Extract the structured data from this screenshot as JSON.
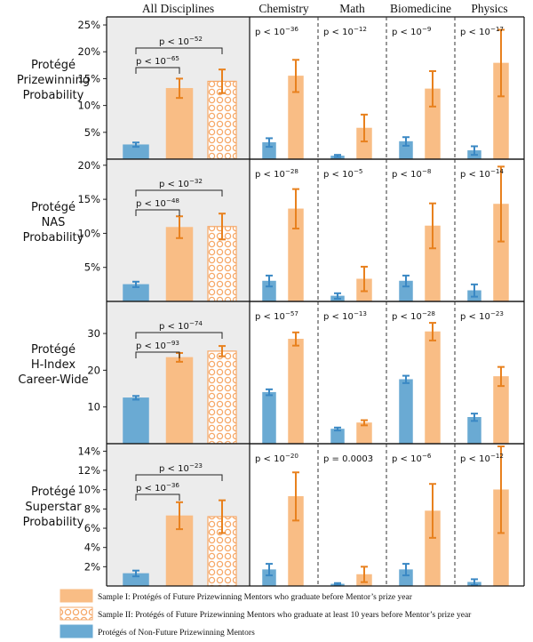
{
  "chart_data": {
    "type": "bar",
    "columns": [
      "All Disciplines",
      "Chemistry",
      "Math",
      "Biomedicine",
      "Physics"
    ],
    "colors": {
      "sample1_fill": "#f9bd85",
      "sample1_error": "#e8811e",
      "sample2_pattern": "#f6a868",
      "nonfuture_fill": "#6aaad3",
      "nonfuture_error": "#3a88c4",
      "all_panel_bg": "#ececec"
    },
    "rows": [
      {
        "label": [
          "Protégé",
          "Prizewinning",
          "Probability"
        ],
        "ymax": 0.26,
        "ticks": [
          0.05,
          0.1,
          0.15,
          0.2,
          0.25
        ],
        "tick_labels": [
          "5%",
          "10%",
          "15%",
          "20%",
          "25%"
        ],
        "all": {
          "nonfuture": [
            0.027,
            0.004
          ],
          "sample1": [
            0.132,
            0.018
          ],
          "sample2": [
            0.145,
            0.022
          ],
          "brackets": [
            [
              "p < 10",
              "−52"
            ],
            [
              "p < 10",
              "−65"
            ]
          ]
        },
        "disc": [
          {
            "p": [
              "p < 10",
              "−36"
            ],
            "nonfuture": [
              0.031,
              0.008
            ],
            "sample1": [
              0.155,
              0.03
            ]
          },
          {
            "p": [
              "p < 10",
              "−12"
            ],
            "nonfuture": [
              0.006,
              0.002
            ],
            "sample1": [
              0.058,
              0.025
            ]
          },
          {
            "p": [
              "p < 10",
              "−9"
            ],
            "nonfuture": [
              0.033,
              0.008
            ],
            "sample1": [
              0.131,
              0.033
            ]
          },
          {
            "p": [
              "p < 10",
              "−17"
            ],
            "nonfuture": [
              0.016,
              0.008
            ],
            "sample1": [
              0.179,
              0.062
            ]
          }
        ]
      },
      {
        "label": [
          "Protégé",
          "NAS",
          "Probability"
        ],
        "ymax": 0.205,
        "ticks": [
          0.05,
          0.1,
          0.15,
          0.2
        ],
        "tick_labels": [
          "5%",
          "10%",
          "15%",
          "20%"
        ],
        "all": {
          "nonfuture": [
            0.025,
            0.004
          ],
          "sample1": [
            0.109,
            0.016
          ],
          "sample2": [
            0.11,
            0.019
          ],
          "brackets": [
            [
              "p < 10",
              "−32"
            ],
            [
              "p < 10",
              "−48"
            ]
          ]
        },
        "disc": [
          {
            "p": [
              "p < 10",
              "−28"
            ],
            "nonfuture": [
              0.03,
              0.008
            ],
            "sample1": [
              0.136,
              0.029
            ]
          },
          {
            "p": [
              "p < 10",
              "−5"
            ],
            "nonfuture": [
              0.008,
              0.004
            ],
            "sample1": [
              0.033,
              0.018
            ]
          },
          {
            "p": [
              "p < 10",
              "−8"
            ],
            "nonfuture": [
              0.03,
              0.008
            ],
            "sample1": [
              0.111,
              0.033
            ]
          },
          {
            "p": [
              "p < 10",
              "−14"
            ],
            "nonfuture": [
              0.016,
              0.009
            ],
            "sample1": [
              0.143,
              0.055
            ]
          }
        ]
      },
      {
        "label": [
          "Protégé",
          "H-Index",
          "Career-Wide"
        ],
        "ymax": 38,
        "ticks": [
          10,
          20,
          30
        ],
        "tick_labels": [
          "10",
          "20",
          "30"
        ],
        "all": {
          "nonfuture": [
            12.5,
            0.5
          ],
          "sample1": [
            23.5,
            1.2
          ],
          "sample2": [
            25.2,
            1.4
          ],
          "brackets": [
            [
              "p < 10",
              "−74"
            ],
            [
              "p < 10",
              "−93"
            ]
          ]
        },
        "disc": [
          {
            "p": [
              "p < 10",
              "−57"
            ],
            "nonfuture": [
              14.0,
              0.8
            ],
            "sample1": [
              28.5,
              1.8
            ]
          },
          {
            "p": [
              "p < 10",
              "−13"
            ],
            "nonfuture": [
              4.0,
              0.4
            ],
            "sample1": [
              5.7,
              0.7
            ]
          },
          {
            "p": [
              "p < 10",
              "−28"
            ],
            "nonfuture": [
              17.5,
              1.0
            ],
            "sample1": [
              30.5,
              2.4
            ]
          },
          {
            "p": [
              "p < 10",
              "−23"
            ],
            "nonfuture": [
              7.2,
              1.0
            ],
            "sample1": [
              18.3,
              2.6
            ]
          }
        ]
      },
      {
        "label": [
          "Protégé",
          "Superstar",
          "Probability"
        ],
        "ymax": 0.145,
        "ticks": [
          0.02,
          0.04,
          0.06,
          0.08,
          0.1,
          0.12,
          0.14
        ],
        "tick_labels": [
          "2%",
          "4%",
          "6%",
          "8%",
          "10%",
          "12%",
          "14%"
        ],
        "all": {
          "nonfuture": [
            0.013,
            0.003
          ],
          "sample1": [
            0.073,
            0.014
          ],
          "sample2": [
            0.072,
            0.017
          ],
          "brackets": [
            [
              "p < 10",
              "−23"
            ],
            [
              "p < 10",
              "−36"
            ]
          ]
        },
        "disc": [
          {
            "p": [
              "p < 10",
              "−20"
            ],
            "nonfuture": [
              0.017,
              0.006
            ],
            "sample1": [
              0.093,
              0.025
            ]
          },
          {
            "p": [
              "p = 0.0003",
              ""
            ],
            "nonfuture": [
              0.002,
              0.001
            ],
            "sample1": [
              0.012,
              0.008
            ]
          },
          {
            "p": [
              "p < 10",
              "−6"
            ],
            "nonfuture": [
              0.017,
              0.006
            ],
            "sample1": [
              0.078,
              0.028
            ]
          },
          {
            "p": [
              "p < 10",
              "−12"
            ],
            "nonfuture": [
              0.004,
              0.003
            ],
            "sample1": [
              0.1,
              0.045
            ]
          }
        ]
      }
    ],
    "legend": [
      {
        "key": "sample1",
        "label": "Sample I: Protégés of Future Prizewinning Mentors who graduate before Mentor’s prize year"
      },
      {
        "key": "sample2",
        "label": "Sample II: Protégés of Future Prizewinning Mentors who graduate at least 10 years before Mentor’s prize year"
      },
      {
        "key": "nonfuture",
        "label": "Protégés of Non-Future Prizewinning Mentors"
      }
    ]
  }
}
